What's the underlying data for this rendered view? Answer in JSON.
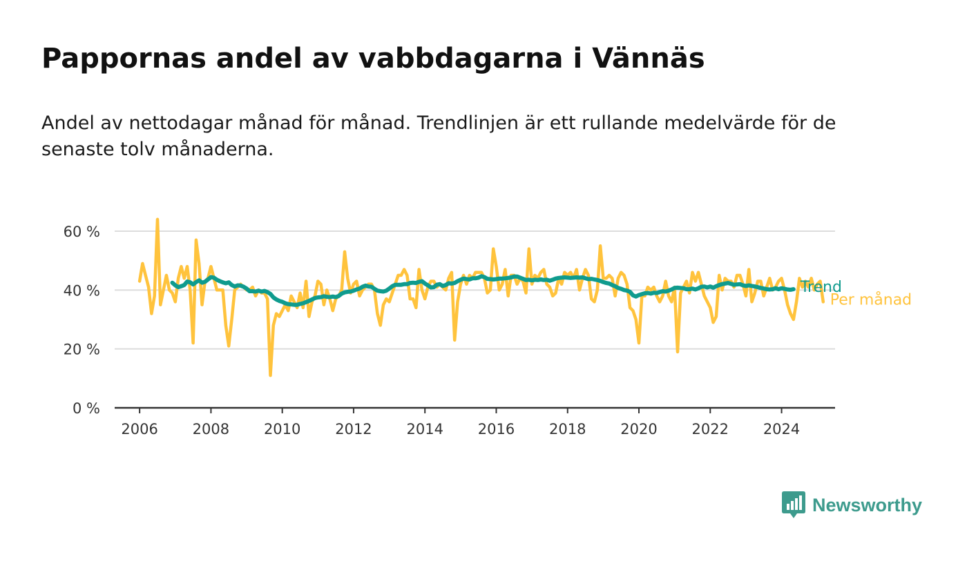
{
  "header": {
    "title": "Pappornas andel av vabbdagarna i Vännäs",
    "subtitle": "Andel av nettodagar månad för månad. Trendlinjen är ett rullande medelvärde för de senaste tolv månaderna."
  },
  "brand": {
    "name": "Newsworthy",
    "color": "#3d9b8d",
    "icon": "bar-chart-badge-icon"
  },
  "colors": {
    "trend": "#0f9b8e",
    "monthly": "#ffc33d",
    "grid": "#dcdcdc",
    "axis": "#333333"
  },
  "chart_data": {
    "type": "line",
    "xlim": [
      2005.3,
      2025.5
    ],
    "ylim": [
      0,
      70
    ],
    "x_ticks": [
      2006,
      2008,
      2010,
      2012,
      2014,
      2016,
      2018,
      2020,
      2022,
      2024
    ],
    "y_ticks": [
      0,
      20,
      40,
      60
    ],
    "y_tick_labels": [
      "0 %",
      "20 %",
      "40 %",
      "60 %"
    ],
    "grid": true,
    "legend": "line-end labels",
    "series": [
      {
        "name": "Per månad",
        "color": "#ffc33d",
        "start": 2006.0,
        "step": 0.0833333,
        "values": [
          43,
          49,
          45,
          41,
          32,
          38,
          64,
          35,
          40,
          45,
          40,
          39,
          36,
          44,
          48,
          44,
          48,
          40,
          22,
          57,
          49,
          35,
          43,
          44,
          48,
          44,
          40,
          40,
          40,
          28,
          21,
          30,
          40,
          41,
          42,
          41,
          40,
          40,
          41,
          38,
          40,
          39,
          39,
          37,
          11,
          28,
          32,
          31,
          33,
          35,
          33,
          38,
          36,
          34,
          39,
          34,
          43,
          31,
          36,
          38,
          43,
          42,
          35,
          40,
          37,
          33,
          37,
          38,
          40,
          53,
          44,
          39,
          42,
          43,
          38,
          40,
          41,
          42,
          42,
          40,
          32,
          28,
          35,
          37,
          36,
          39,
          42,
          45,
          45,
          47,
          45,
          37,
          37,
          34,
          47,
          40,
          37,
          41,
          43,
          43,
          41,
          42,
          41,
          40,
          44,
          46,
          23,
          36,
          42,
          45,
          42,
          45,
          44,
          46,
          46,
          46,
          44,
          39,
          40,
          54,
          48,
          40,
          42,
          47,
          38,
          45,
          45,
          42,
          44,
          43,
          39,
          54,
          42,
          45,
          44,
          46,
          47,
          42,
          41,
          38,
          39,
          44,
          42,
          46,
          45,
          46,
          44,
          47,
          40,
          44,
          47,
          45,
          37,
          36,
          40,
          55,
          44,
          44,
          45,
          44,
          38,
          44,
          46,
          45,
          42,
          34,
          33,
          30,
          22,
          38,
          38,
          41,
          40,
          41,
          38,
          36,
          38,
          43,
          38,
          36,
          41,
          19,
          39,
          41,
          43,
          39,
          46,
          43,
          46,
          42,
          38,
          36,
          34,
          29,
          31,
          45,
          40,
          44,
          43,
          43,
          41,
          45,
          45,
          42,
          38,
          47,
          36,
          39,
          43,
          43,
          38,
          41,
          44,
          40,
          41,
          43,
          44,
          40,
          35,
          32,
          30,
          36,
          44,
          41,
          43,
          41,
          44,
          40,
          42,
          43,
          36
        ]
      },
      {
        "name": "Trend",
        "color": "#0f9b8e",
        "start": 2006.9167,
        "step": 0.0833333,
        "values": [
          42.5,
          41.6,
          41.0,
          41.3,
          41.7,
          42.9,
          42.6,
          41.9,
          42.7,
          43.3,
          42.5,
          42.8,
          43.6,
          44.4,
          44.2,
          43.5,
          43.0,
          42.6,
          42.3,
          42.6,
          41.7,
          41.2,
          41.6,
          41.5,
          41.1,
          40.5,
          39.6,
          39.6,
          39.5,
          39.8,
          39.5,
          39.7,
          39.3,
          38.7,
          37.5,
          36.8,
          36.3,
          36.0,
          35.5,
          35.2,
          35.1,
          35.0,
          35.0,
          35.3,
          35.5,
          35.9,
          36.3,
          36.8,
          37.3,
          37.5,
          37.6,
          37.9,
          37.7,
          37.6,
          37.8,
          37.6,
          38.0,
          38.8,
          39.2,
          39.4,
          39.5,
          39.8,
          40.2,
          40.5,
          41.1,
          41.5,
          41.2,
          41.1,
          40.4,
          39.8,
          39.6,
          39.5,
          39.8,
          40.5,
          41.3,
          41.8,
          41.8,
          41.8,
          42.0,
          42.0,
          42.4,
          42.5,
          42.4,
          42.8,
          43.0,
          42.2,
          41.6,
          40.9,
          41.0,
          41.8,
          42.0,
          41.4,
          41.7,
          42.3,
          42.2,
          42.4,
          43.0,
          43.5,
          43.9,
          43.7,
          43.6,
          44.0,
          44.0,
          44.2,
          44.7,
          44.4,
          43.8,
          43.7,
          43.6,
          43.7,
          43.9,
          43.9,
          44.0,
          44.1,
          44.3,
          44.6,
          44.6,
          44.2,
          43.8,
          43.4,
          43.5,
          43.3,
          43.5,
          43.4,
          43.6,
          43.4,
          43.5,
          43.2,
          43.5,
          43.9,
          44.1,
          44.2,
          44.3,
          44.2,
          44.1,
          44.2,
          44.3,
          44.2,
          44.3,
          44.0,
          43.7,
          43.8,
          43.6,
          43.4,
          43.1,
          42.7,
          42.4,
          42.2,
          41.7,
          41.3,
          40.7,
          40.4,
          40.0,
          39.8,
          39.4,
          38.2,
          37.8,
          38.3,
          38.6,
          38.9,
          39.0,
          38.8,
          39.1,
          39.0,
          39.3,
          39.6,
          39.5,
          39.8,
          40.2,
          40.7,
          40.8,
          40.7,
          40.6,
          40.3,
          40.3,
          40.5,
          40.2,
          40.6,
          41.1,
          41.2,
          40.9,
          41.2,
          40.8,
          41.3,
          41.7,
          42.0,
          42.2,
          42.4,
          42.1,
          41.8,
          41.9,
          42.0,
          41.6,
          41.4,
          41.6,
          41.4,
          41.2,
          41.0,
          40.7,
          40.5,
          40.3,
          40.2,
          40.3,
          40.6,
          40.3,
          40.6,
          40.4,
          40.2,
          40.1,
          40.3
        ]
      }
    ]
  }
}
